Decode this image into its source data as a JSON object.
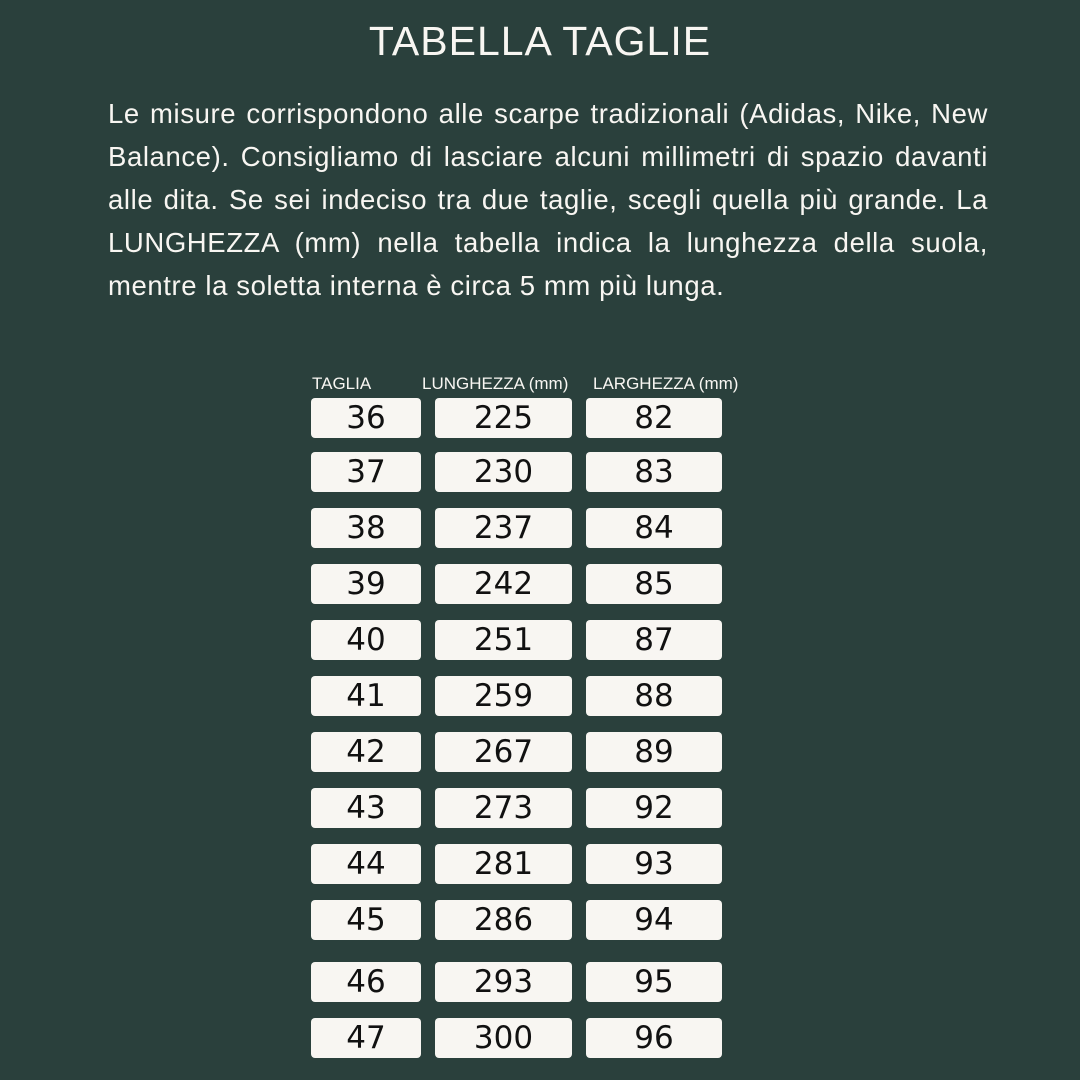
{
  "title": "TABELLA TAGLIE",
  "intro": "Le misure corrispondono alle scarpe tradizionali (Adidas, Nike, New Balance). Consigliamo di lasciare alcuni millimetri di spazio davanti alle dita. Se sei indeciso tra due taglie, scegli quella più grande. La LUNGHEZZA (mm) nella tabella indica la lunghezza della suola, mentre la soletta interna è circa 5 mm più lunga.",
  "colors": {
    "background": "#2a403c",
    "cell": "#f8f6f2"
  },
  "table": {
    "headers": [
      "TAGLIA",
      "LUNGHEZZA (mm)",
      "LARGHEZZA (mm)"
    ],
    "rows": [
      [
        "36",
        "225",
        "82"
      ],
      [
        "37",
        "230",
        "83"
      ],
      [
        "38",
        "237",
        "84"
      ],
      [
        "39",
        "242",
        "85"
      ],
      [
        "40",
        "251",
        "87"
      ],
      [
        "41",
        "259",
        "88"
      ],
      [
        "42",
        "267",
        "89"
      ],
      [
        "43",
        "273",
        "92"
      ],
      [
        "44",
        "281",
        "93"
      ],
      [
        "45",
        "286",
        "94"
      ],
      [
        "46",
        "293",
        "95"
      ],
      [
        "47",
        "300",
        "96"
      ]
    ]
  }
}
